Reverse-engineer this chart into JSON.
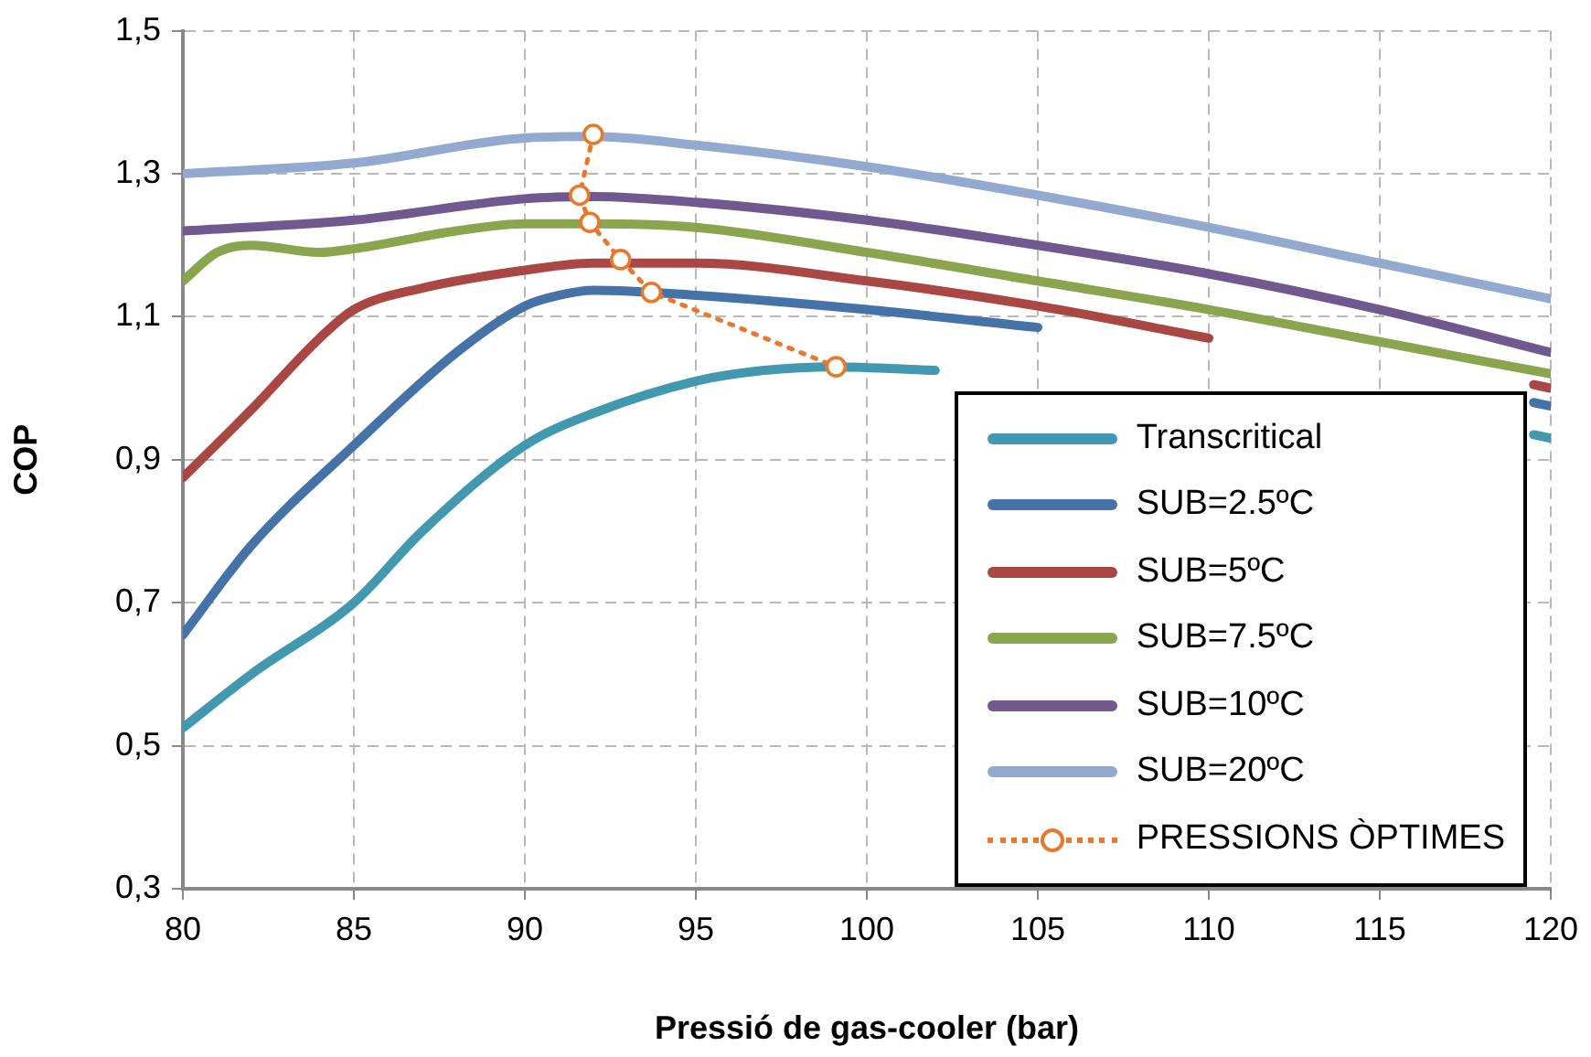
{
  "chart_data": {
    "type": "line",
    "xlabel": "Pressió de gas-cooler (bar)",
    "ylabel": "COP",
    "xlim": [
      80,
      120
    ],
    "xticks": [
      80,
      85,
      90,
      95,
      100,
      105,
      110,
      115,
      120
    ],
    "ylim": [
      0.3,
      1.5
    ],
    "yticks": [
      {
        "value": 0.3,
        "label": "0,3"
      },
      {
        "value": 0.5,
        "label": "0,5"
      },
      {
        "value": 0.7,
        "label": "0,7"
      },
      {
        "value": 0.9,
        "label": "0,9"
      },
      {
        "value": 1.1,
        "label": "1,1"
      },
      {
        "value": 1.3,
        "label": "1,3"
      },
      {
        "value": 1.5,
        "label": "1,5"
      }
    ],
    "grid": true,
    "legend": "bottom right",
    "marker": "none",
    "line_style": "solid",
    "series": [
      {
        "name": "Transcritical",
        "color": "#4198af",
        "x": [
          80,
          82,
          85,
          87,
          90,
          92,
          95,
          97,
          99,
          102,
          105,
          110,
          115,
          119.5,
          120
        ],
        "values": [
          0.525,
          0.6,
          0.7,
          0.8,
          0.92,
          0.965,
          1.01,
          1.025,
          1.03,
          1.025,
          null,
          null,
          null,
          0.935,
          0.93
        ]
      },
      {
        "name": "SUB=2.5ºC",
        "color": "#4573a7",
        "x": [
          80,
          82,
          85,
          88,
          90,
          91,
          92,
          95,
          100,
          105,
          110,
          115,
          119.5,
          120
        ],
        "values": [
          0.655,
          0.78,
          0.92,
          1.05,
          1.115,
          1.13,
          1.137,
          1.13,
          1.11,
          1.085,
          null,
          null,
          0.98,
          0.975
        ]
      },
      {
        "name": "SUB=5ºC",
        "color": "#aa4643",
        "x": [
          80,
          82,
          84,
          85,
          87,
          90,
          92,
          95,
          100,
          105,
          110,
          115,
          119.5,
          120
        ],
        "values": [
          0.875,
          0.97,
          1.07,
          1.11,
          1.14,
          1.165,
          1.175,
          1.175,
          1.15,
          1.115,
          1.07,
          null,
          1.005,
          1.0
        ]
      },
      {
        "name": "SUB=7.5ºC",
        "color": "#89a54e",
        "x": [
          80,
          81,
          82,
          84,
          85,
          88,
          90,
          92,
          95,
          100,
          105,
          110,
          115,
          120
        ],
        "values": [
          1.15,
          1.19,
          1.2,
          1.19,
          1.195,
          1.22,
          1.23,
          1.23,
          1.225,
          1.19,
          1.15,
          1.11,
          1.065,
          1.02
        ]
      },
      {
        "name": "SUB=10ºC",
        "color": "#71588f",
        "x": [
          80,
          85,
          90,
          92,
          95,
          100,
          105,
          110,
          115,
          120
        ],
        "values": [
          1.22,
          1.235,
          1.265,
          1.268,
          1.26,
          1.235,
          1.2,
          1.16,
          1.11,
          1.05
        ]
      },
      {
        "name": "SUB=20ºC",
        "color": "#93a9cf",
        "x": [
          80,
          85,
          90,
          92,
          95,
          100,
          105,
          110,
          115,
          120
        ],
        "values": [
          1.3,
          1.315,
          1.35,
          1.352,
          1.34,
          1.31,
          1.27,
          1.225,
          1.175,
          1.125
        ]
      },
      {
        "name": "PRESSIONS ÒPTIMES",
        "color": "#e8782a",
        "marker": "circle",
        "line_style": "dotted",
        "x": [
          92.0,
          91.6,
          91.9,
          92.8,
          93.7,
          99.1
        ],
        "values": [
          1.355,
          1.27,
          1.232,
          1.18,
          1.134,
          1.03
        ]
      }
    ]
  }
}
